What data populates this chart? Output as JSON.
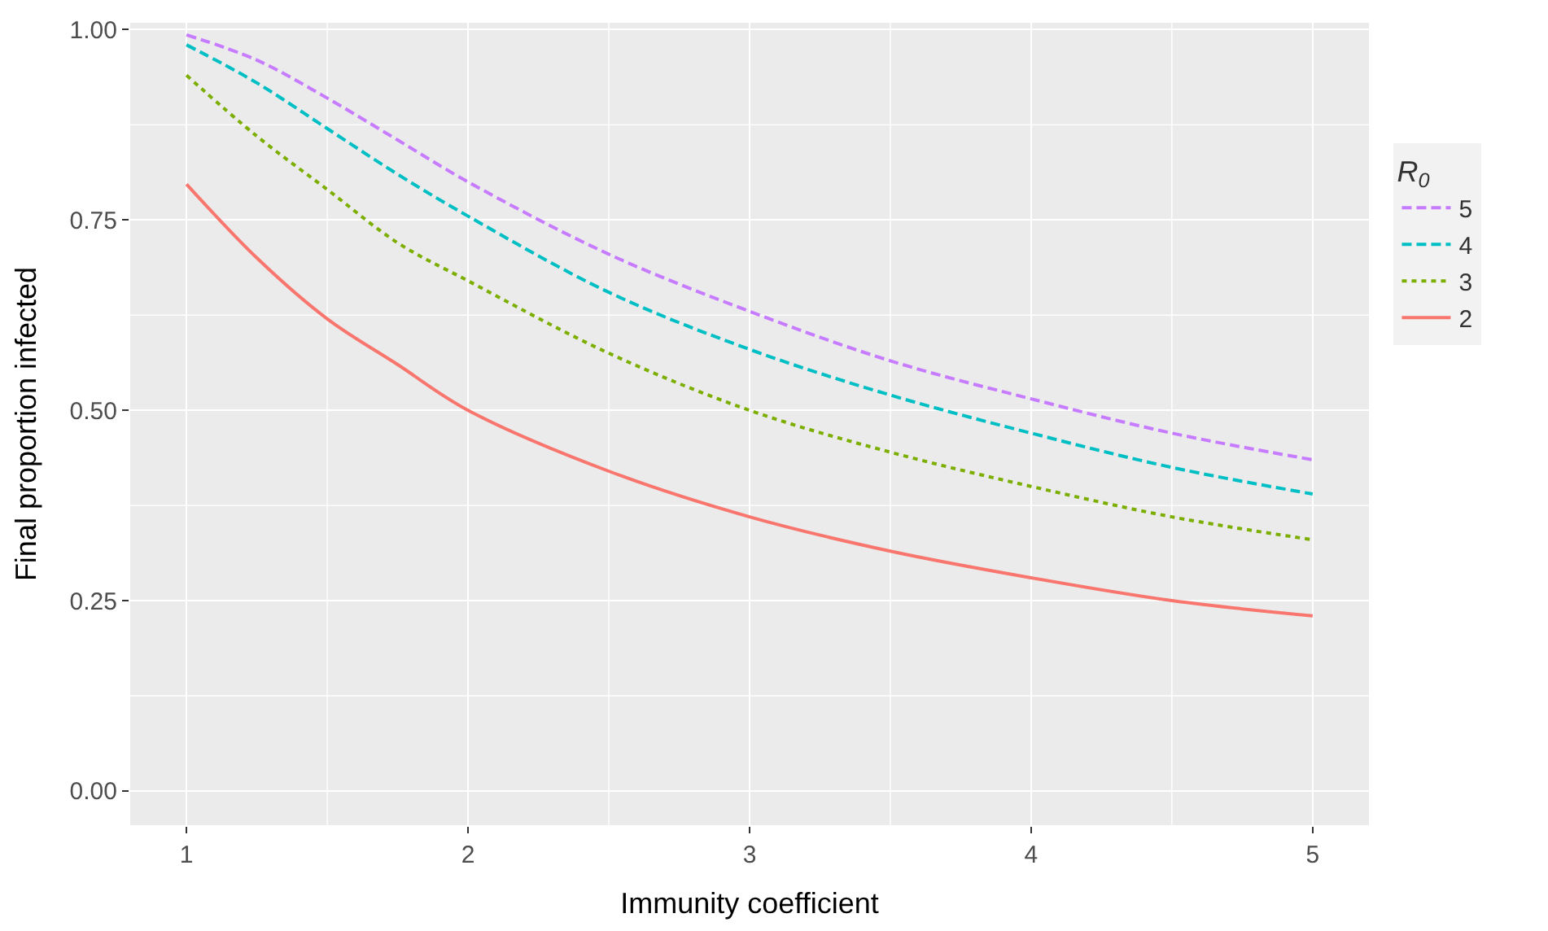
{
  "chart_data": {
    "type": "line",
    "xlabel": "Immunity coefficient",
    "ylabel": "Final proportion infected",
    "legend_title": "R$_{0}$",
    "x": [
      1,
      1.25,
      1.5,
      1.75,
      2,
      2.5,
      3,
      3.5,
      4,
      4.5,
      5
    ],
    "xlim": [
      0.8,
      5.2
    ],
    "xticks": [
      1,
      2,
      3,
      4,
      5
    ],
    "ylim": [
      0,
      1
    ],
    "yticks": [
      {
        "value": 0,
        "label": "0.00"
      },
      {
        "value": 0.25,
        "label": "0.25"
      },
      {
        "value": 0.5,
        "label": "0.50"
      },
      {
        "value": 0.75,
        "label": "0.75"
      },
      {
        "value": 1,
        "label": "1.00"
      }
    ],
    "grid": true,
    "legend": "right",
    "marker": "none",
    "series": [
      {
        "name": "5",
        "color": "#c77cff",
        "line_style": "dashed",
        "values": [
          0.993,
          0.96,
          0.91,
          0.855,
          0.8,
          0.705,
          0.63,
          0.565,
          0.515,
          0.47,
          0.435
        ]
      },
      {
        "name": "4",
        "color": "#00bfc4",
        "line_style": "dashed",
        "values": [
          0.98,
          0.93,
          0.87,
          0.81,
          0.755,
          0.655,
          0.58,
          0.52,
          0.47,
          0.425,
          0.39
        ]
      },
      {
        "name": "3",
        "color": "#7cae00",
        "line_style": "dotted",
        "values": [
          0.94,
          0.86,
          0.79,
          0.72,
          0.67,
          0.575,
          0.5,
          0.445,
          0.4,
          0.36,
          0.33
        ]
      },
      {
        "name": "2",
        "color": "#f8766d",
        "line_style": "solid",
        "values": [
          0.797,
          0.7,
          0.62,
          0.56,
          0.5,
          0.42,
          0.36,
          0.315,
          0.28,
          0.25,
          0.23
        ]
      }
    ]
  }
}
